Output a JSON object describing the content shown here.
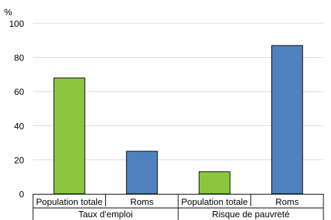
{
  "chart_data": {
    "type": "bar",
    "unit_label": "%",
    "ylim": [
      0,
      100
    ],
    "yticks": [
      0,
      20,
      40,
      60,
      80,
      100
    ],
    "grid": true,
    "groups": [
      {
        "label": "Taux d'emploi",
        "bars": [
          {
            "category": "Population totale",
            "value": 68,
            "color": "#8cc63f"
          },
          {
            "category": "Roms",
            "value": 25,
            "color": "#4f81bd"
          }
        ]
      },
      {
        "label": "Risque de pauvreté",
        "bars": [
          {
            "category": "Population totale",
            "value": 13,
            "color": "#8cc63f"
          },
          {
            "category": "Roms",
            "value": 87,
            "color": "#4f81bd"
          }
        ]
      }
    ],
    "colors": {
      "total_population": "#8cc63f",
      "roms": "#4f81bd",
      "grid": "#d9d9d9"
    }
  }
}
